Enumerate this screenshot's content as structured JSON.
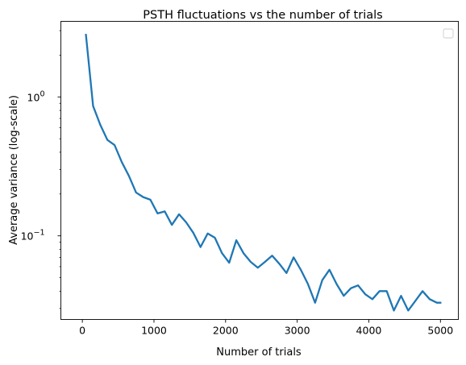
{
  "chart_data": {
    "type": "line",
    "title": "PSTH fluctuations vs the number of trials",
    "xlabel": "Number of trials",
    "ylabel": "Average variance (log-scale)",
    "xlim": [
      -300,
      5250
    ],
    "ylim": [
      0.025,
      3.5
    ],
    "yscale": "log",
    "grid": false,
    "legend": "top-right",
    "legend_entries": [],
    "line_color": "#1f77b4",
    "x_ticks": [
      {
        "value": 0,
        "label": "0"
      },
      {
        "value": 1000,
        "label": "1000"
      },
      {
        "value": 2000,
        "label": "2000"
      },
      {
        "value": 3000,
        "label": "3000"
      },
      {
        "value": 4000,
        "label": "4000"
      },
      {
        "value": 5000,
        "label": "5000"
      }
    ],
    "y_ticks": [
      {
        "value": 0.1,
        "base": "10",
        "exp": "−1"
      },
      {
        "value": 1,
        "base": "10",
        "exp": "0"
      }
    ],
    "series": [
      {
        "x": [
          50,
          150,
          250,
          350,
          450,
          550,
          650,
          750,
          850,
          950,
          1050,
          1150,
          1250,
          1350,
          1450,
          1550,
          1650,
          1750,
          1850,
          1950,
          2050,
          2150,
          2250,
          2350,
          2450,
          2550,
          2650,
          2750,
          2850,
          2950,
          3050,
          3150,
          3250,
          3350,
          3450,
          3550,
          3650,
          3750,
          3850,
          3950,
          4050,
          4150,
          4250,
          4350,
          4450,
          4550,
          4650,
          4750,
          4850,
          4950,
          5000
        ],
        "values": [
          2.8,
          0.86,
          0.63,
          0.49,
          0.45,
          0.34,
          0.27,
          0.205,
          0.19,
          0.182,
          0.145,
          0.15,
          0.12,
          0.143,
          0.125,
          0.105,
          0.083,
          0.104,
          0.097,
          0.075,
          0.064,
          0.093,
          0.075,
          0.065,
          0.059,
          0.065,
          0.072,
          0.063,
          0.054,
          0.07,
          0.057,
          0.045,
          0.033,
          0.048,
          0.057,
          0.045,
          0.037,
          0.042,
          0.044,
          0.038,
          0.035,
          0.04,
          0.04,
          0.029,
          0.037,
          0.029,
          0.034,
          0.04,
          0.035,
          0.033,
          0.033
        ]
      }
    ]
  }
}
